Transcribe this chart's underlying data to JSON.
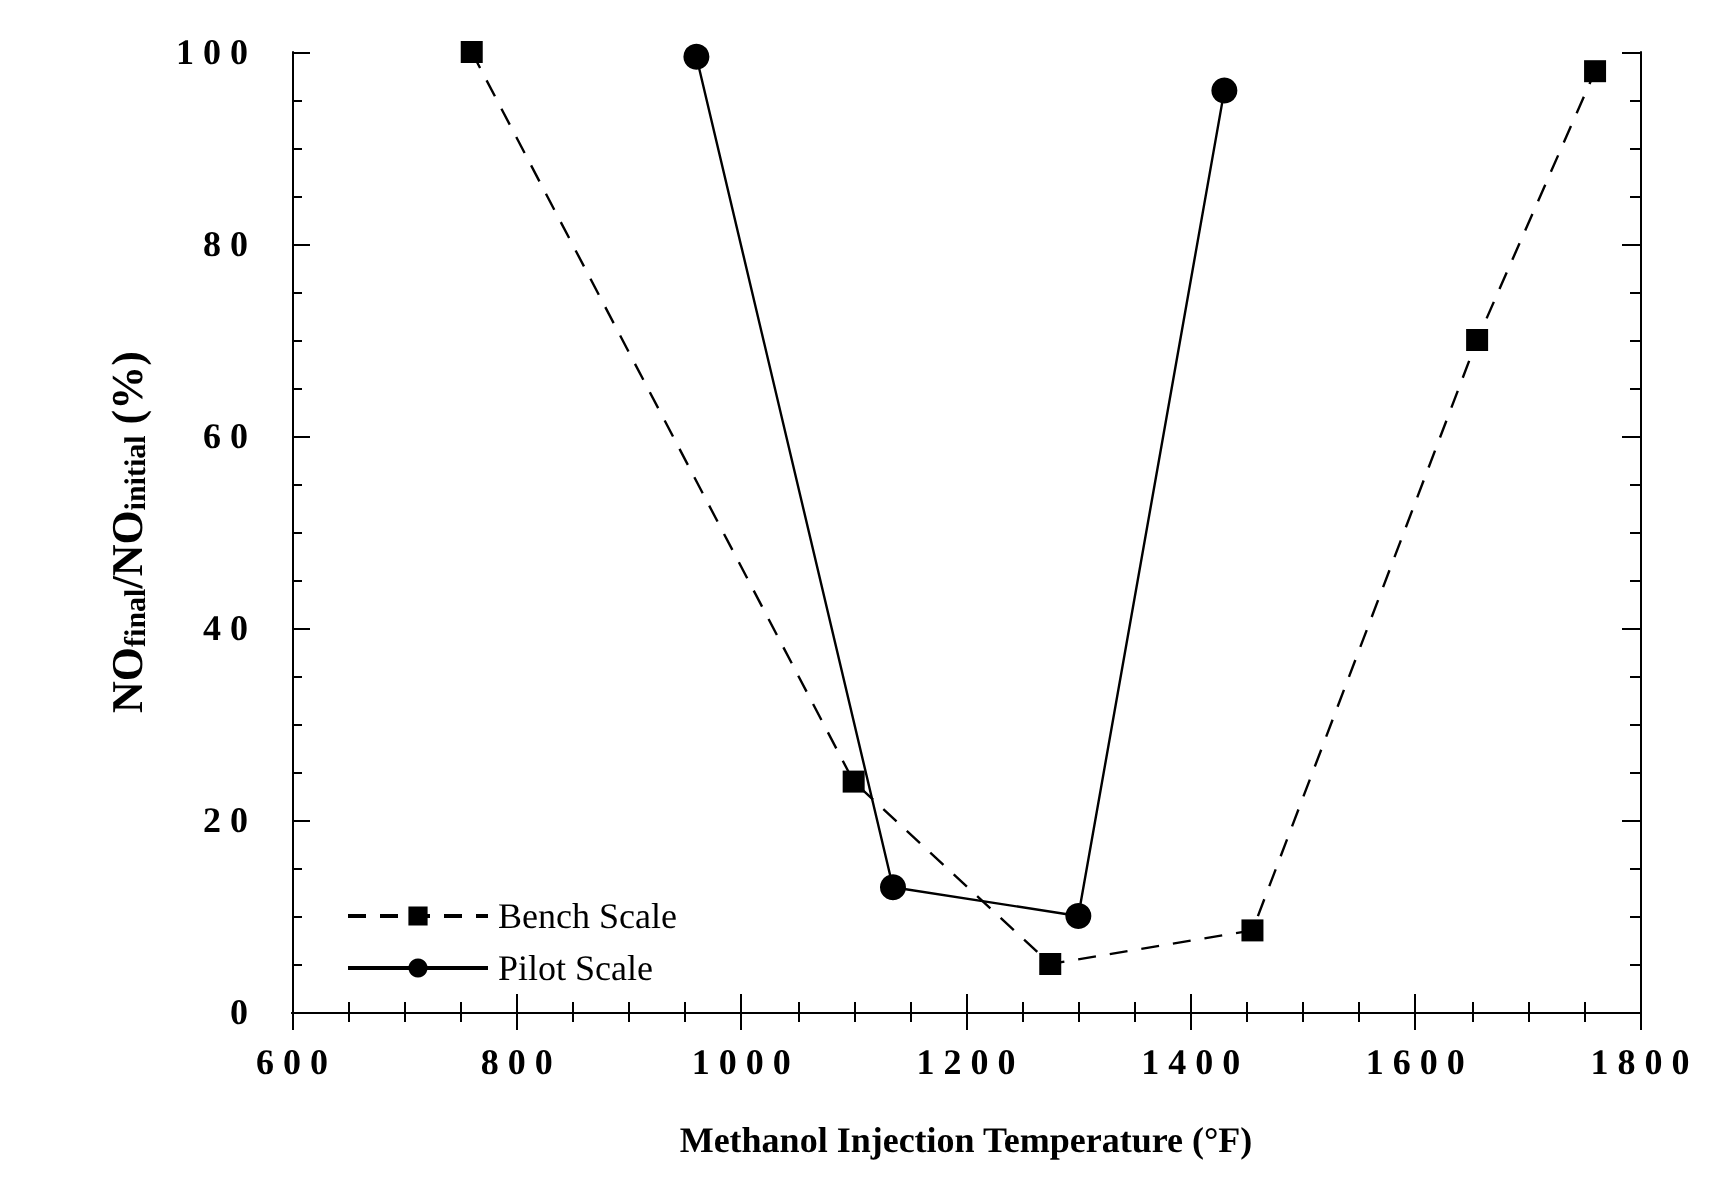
{
  "chart_data": {
    "type": "line",
    "xlabel": "Methanol Injection Temperature (°F)",
    "ylabel": "NO$_{final}$/NO$_{initial}$ (%)",
    "xlim": [
      600,
      1800
    ],
    "xticks": [
      600,
      800,
      1000,
      1200,
      1400,
      1600,
      1800
    ],
    "ylim": [
      0,
      100
    ],
    "yticks": [
      0,
      20,
      40,
      60,
      80,
      100
    ],
    "grid": false,
    "legend": "bottom left",
    "series": [
      {
        "name": "Bench Scale",
        "color": "#000000",
        "marker": "square",
        "line_style": "dashed",
        "x": [
          760,
          1100,
          1275,
          1455,
          1655,
          1760
        ],
        "values": [
          100,
          24,
          5,
          8.5,
          70,
          98
        ]
      },
      {
        "name": "Pilot Scale",
        "color": "#000000",
        "marker": "circle",
        "line_style": "solid",
        "x": [
          960,
          1135,
          1300,
          1430
        ],
        "values": [
          99.5,
          13,
          10,
          96
        ]
      }
    ]
  }
}
